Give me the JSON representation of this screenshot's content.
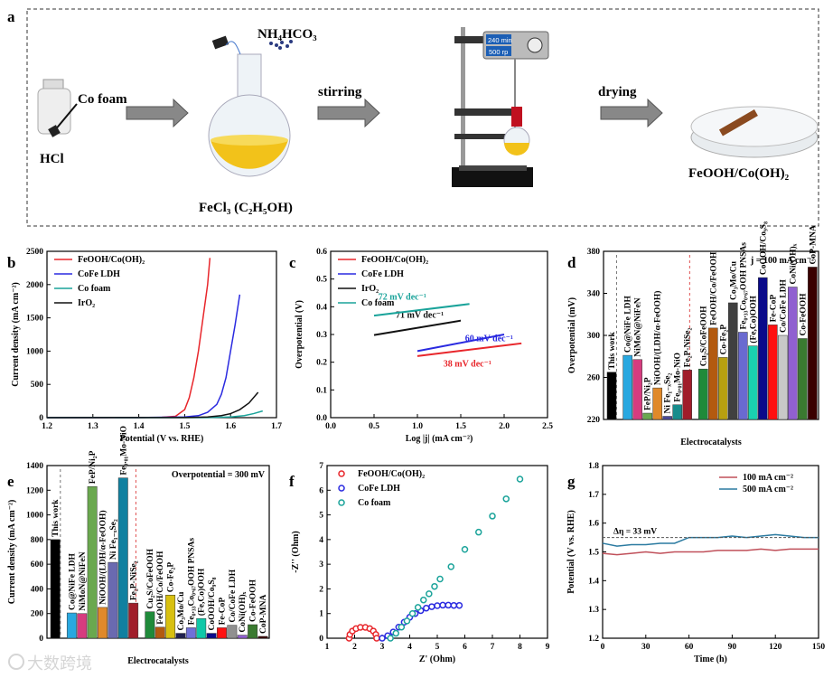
{
  "panel_letters": [
    "a",
    "b",
    "c",
    "d",
    "e",
    "f",
    "g"
  ],
  "schematic": {
    "hcl": "HCl",
    "co_foam": "Co foam",
    "nh4hco3": "NH₄HCO₃",
    "fecl3": "FeCl₃ (C₂H₅OH)",
    "stirring": "stirring",
    "drying": "drying",
    "product": "FeOOH/Co(OH)₂",
    "stirrer_time": "240 min",
    "stirrer_speed": "500 rp"
  },
  "watermark": "大数跨境",
  "chart_data": [
    {
      "type": "line",
      "xlabel": "Potential (V vs. RHE)",
      "ylabel": "Current density (mA cm⁻²)",
      "xlim": [
        1.2,
        1.7
      ],
      "ylim": [
        0,
        2500
      ],
      "xticks": [
        "1.2",
        "1.3",
        "1.4",
        "1.5",
        "1.6",
        "1.7"
      ],
      "yticks": [
        "0",
        "500",
        "1000",
        "1500",
        "2000",
        "2500"
      ],
      "legend_position": "top-left",
      "series": [
        {
          "name": "FeOOH/Co(OH)₂",
          "color": "#e8262b",
          "x": [
            1.2,
            1.3,
            1.4,
            1.45,
            1.48,
            1.5,
            1.51,
            1.52,
            1.53,
            1.54,
            1.55,
            1.555
          ],
          "y": [
            0,
            0,
            2,
            5,
            20,
            120,
            300,
            600,
            1000,
            1500,
            2000,
            2400
          ]
        },
        {
          "name": "CoFe LDH",
          "color": "#2a2ae0",
          "x": [
            1.2,
            1.4,
            1.5,
            1.53,
            1.55,
            1.57,
            1.58,
            1.59,
            1.6,
            1.61,
            1.62
          ],
          "y": [
            0,
            2,
            10,
            30,
            80,
            200,
            350,
            600,
            1000,
            1400,
            1850
          ]
        },
        {
          "name": "Co foam",
          "color": "#1aa39a",
          "x": [
            1.2,
            1.55,
            1.6,
            1.63,
            1.65,
            1.67
          ],
          "y": [
            0,
            2,
            10,
            30,
            60,
            100
          ]
        },
        {
          "name": "IrO₂",
          "color": "#111111",
          "x": [
            1.2,
            1.5,
            1.55,
            1.58,
            1.6,
            1.62,
            1.64,
            1.66
          ],
          "y": [
            0,
            2,
            10,
            30,
            60,
            120,
            220,
            380
          ]
        }
      ]
    },
    {
      "type": "line",
      "xlabel": "Log |j| (mA cm⁻²)",
      "ylabel": "Overpotential (V)",
      "xlim": [
        0,
        2.5
      ],
      "ylim": [
        0,
        0.6
      ],
      "xticks": [
        "0.0",
        "0.5",
        "1.0",
        "1.5",
        "2.0",
        "2.5"
      ],
      "yticks": [
        "0.0",
        "0.1",
        "0.2",
        "0.3",
        "0.4",
        "0.5",
        "0.6"
      ],
      "legend_position": "top-left",
      "series": [
        {
          "name": "FeOOH/Co(OH)₂",
          "color": "#e8262b",
          "x": [
            1.0,
            2.2
          ],
          "y": [
            0.222,
            0.268
          ],
          "annotation": "38 mV dec⁻¹",
          "ann_at": [
            1.3,
            0.185
          ]
        },
        {
          "name": "CoFe LDH",
          "color": "#2a2ae0",
          "x": [
            1.0,
            2.0
          ],
          "y": [
            0.24,
            0.3
          ],
          "annotation": "60 mV dec⁻¹",
          "ann_at": [
            1.55,
            0.275
          ]
        },
        {
          "name": "IrO₂",
          "color": "#111111",
          "x": [
            0.5,
            1.5
          ],
          "y": [
            0.298,
            0.35
          ],
          "annotation": "71 mV dec⁻¹",
          "ann_at": [
            0.75,
            0.36
          ]
        },
        {
          "name": "Co foam",
          "color": "#1aa39a",
          "x": [
            0.5,
            1.6
          ],
          "y": [
            0.368,
            0.41
          ],
          "annotation": "72 mV dec⁻¹",
          "ann_at": [
            0.55,
            0.425
          ]
        }
      ]
    },
    {
      "type": "bar",
      "title": "j = 100 mA cm⁻²",
      "xlabel": "Electrocatalysts",
      "ylabel": "Overpotential (mV)",
      "ylim": [
        220,
        380
      ],
      "yticks": [
        "220",
        "260",
        "300",
        "340",
        "380"
      ],
      "categories": [
        "This work",
        "Co@NiFe LDH",
        "NiMoN@NiFeN",
        "FeP/Ni₂P",
        "NiOOH/(LDH/α-FeOOH)",
        "Ni Fe₁₋ₓSe₂",
        "Fe₀.₀₁Mo-NiO",
        "Fe₂P-NiSe₂",
        "Cu₂S/CoFeOOH",
        "FeOOH/Co/FeOOH",
        "Co-Fe₂P",
        "Co₃Mo/Cu",
        "Fe₀.₃₃Co₀.₆₇OOH PNSAs",
        "(Fe,Co)OOH",
        "CoOOH/Co₉S₈",
        "Fe-CoP",
        "Co/CoFe LDH",
        "CoNi(OH)ₓ",
        "Co-FeOOH",
        "CoP-MNA"
      ],
      "values": [
        265,
        281,
        277,
        226,
        250,
        223,
        234,
        267,
        268,
        307,
        279,
        331,
        303,
        290,
        355,
        310,
        300,
        346,
        297,
        365
      ],
      "colors": [
        "#000000",
        "#29a8e0",
        "#d63c7f",
        "#6aa84f",
        "#e0892a",
        "#4a4a9a",
        "#178c8c",
        "#a01d2a",
        "#1f8a3a",
        "#b35a10",
        "#b8a010",
        "#404040",
        "#6a6ad0",
        "#1ad0b0",
        "#0a0a8a",
        "#ff1010",
        "#c8c8c8",
        "#9060d0",
        "#3a7a30",
        "#3a0000"
      ]
    },
    {
      "type": "bar",
      "title": "Overpotential = 300 mV",
      "xlabel": "Electrocatalysts",
      "ylabel": "Current density (mA cm⁻²)",
      "ylim": [
        0,
        1400
      ],
      "yticks": [
        "0",
        "200",
        "400",
        "600",
        "800",
        "1000",
        "1200",
        "1400"
      ],
      "categories": [
        "This work",
        "Co@NiFe LDH",
        "NiMoN@NiFeN",
        "FeP/Ni₂P",
        "NiOOH/(LDH/α-FeOOH)",
        "Ni Fe₁₋ₓSe₂",
        "Fe₀.₀₁Mo-NiO",
        "Fe₂P-NiSe₂",
        "Cu₂S/CoFeOOH",
        "FeOOH/Co/FeOOH",
        "Co-Fe₂P",
        "Co₃Mo/Cu",
        "Fe₀.₃₃Co₀.₆₇OOH PNSAs",
        "(Fe,Co)OOH",
        "CoOOH/Co₉S₈",
        "Fe-CoP",
        "Co/CoFe LDH",
        "CoNi(OH)ₓ",
        "Co-FeOOH",
        "CoP-MNA"
      ],
      "values": [
        800,
        205,
        200,
        1230,
        250,
        615,
        1300,
        285,
        215,
        90,
        350,
        40,
        85,
        160,
        40,
        85,
        105,
        25,
        110,
        15
      ],
      "colors": [
        "#000000",
        "#29a8e0",
        "#d63c7f",
        "#6aa84f",
        "#e0892a",
        "#6a6ab0",
        "#1080a0",
        "#a01d2a",
        "#1f8a3a",
        "#b35a10",
        "#d8c010",
        "#202050",
        "#7070d8",
        "#10c8a8",
        "#0a0a8a",
        "#ff1010",
        "#909090",
        "#9060d0",
        "#3a7a30",
        "#3a0000"
      ]
    },
    {
      "type": "scatter",
      "xlabel": "Z' (Ohm)",
      "ylabel": "-Z'' (Ohm)",
      "xlim": [
        1,
        9
      ],
      "ylim": [
        0,
        7
      ],
      "xticks": [
        "1",
        "2",
        "3",
        "4",
        "5",
        "6",
        "7",
        "8",
        "9"
      ],
      "yticks": [
        "0",
        "1",
        "2",
        "3",
        "4",
        "5",
        "6",
        "7"
      ],
      "legend_position": "top-left",
      "series": [
        {
          "name": "FeOOH/Co(OH)₂",
          "color": "#e8262b",
          "x": [
            1.8,
            1.83,
            1.92,
            2.05,
            2.21,
            2.39,
            2.55,
            2.68,
            2.77,
            2.8
          ],
          "y": [
            0,
            0.15,
            0.29,
            0.39,
            0.44,
            0.44,
            0.39,
            0.29,
            0.15,
            0
          ]
        },
        {
          "name": "CoFe LDH",
          "color": "#2a2ae0",
          "x": [
            3.0,
            3.2,
            3.4,
            3.6,
            3.8,
            4.0,
            4.2,
            4.4,
            4.6,
            4.8,
            5.0,
            5.2,
            5.4,
            5.6,
            5.8
          ],
          "y": [
            0,
            0.1,
            0.25,
            0.45,
            0.65,
            0.85,
            1.0,
            1.12,
            1.22,
            1.28,
            1.32,
            1.34,
            1.34,
            1.33,
            1.33
          ]
        },
        {
          "name": "Co foam",
          "color": "#1aa39a",
          "x": [
            3.3,
            3.5,
            3.7,
            3.9,
            4.1,
            4.3,
            4.5,
            4.7,
            4.9,
            5.1,
            5.5,
            6.0,
            6.5,
            7.0,
            7.5,
            8.0
          ],
          "y": [
            0,
            0.2,
            0.45,
            0.7,
            1.0,
            1.25,
            1.55,
            1.8,
            2.1,
            2.4,
            2.9,
            3.6,
            4.3,
            4.95,
            5.65,
            6.45
          ]
        }
      ]
    },
    {
      "type": "line",
      "xlabel": "Time (h)",
      "ylabel": "Potential (V vs. RHE)",
      "xlim": [
        0,
        150
      ],
      "ylim": [
        1.2,
        1.8
      ],
      "xticks": [
        "0",
        "30",
        "60",
        "90",
        "120",
        "150"
      ],
      "yticks": [
        "1.2",
        "1.3",
        "1.4",
        "1.5",
        "1.6",
        "1.7",
        "1.8"
      ],
      "legend_position": "top-right",
      "annotation": "Δη = 33 mV",
      "reference_line": 1.55,
      "series": [
        {
          "name": "100 mA cm⁻²",
          "color": "#c0505a",
          "x": [
            0,
            10,
            20,
            30,
            40,
            50,
            60,
            70,
            80,
            90,
            100,
            110,
            120,
            130,
            140,
            150
          ],
          "y": [
            1.495,
            1.49,
            1.495,
            1.5,
            1.495,
            1.5,
            1.5,
            1.5,
            1.505,
            1.505,
            1.505,
            1.51,
            1.505,
            1.51,
            1.51,
            1.51
          ]
        },
        {
          "name": "500 mA cm⁻²",
          "color": "#2a7aa0",
          "x": [
            0,
            10,
            20,
            30,
            40,
            50,
            60,
            70,
            80,
            90,
            100,
            110,
            120,
            130,
            140,
            150
          ],
          "y": [
            1.53,
            1.52,
            1.525,
            1.525,
            1.53,
            1.53,
            1.55,
            1.55,
            1.55,
            1.555,
            1.55,
            1.555,
            1.56,
            1.555,
            1.55,
            1.55
          ]
        }
      ]
    }
  ]
}
